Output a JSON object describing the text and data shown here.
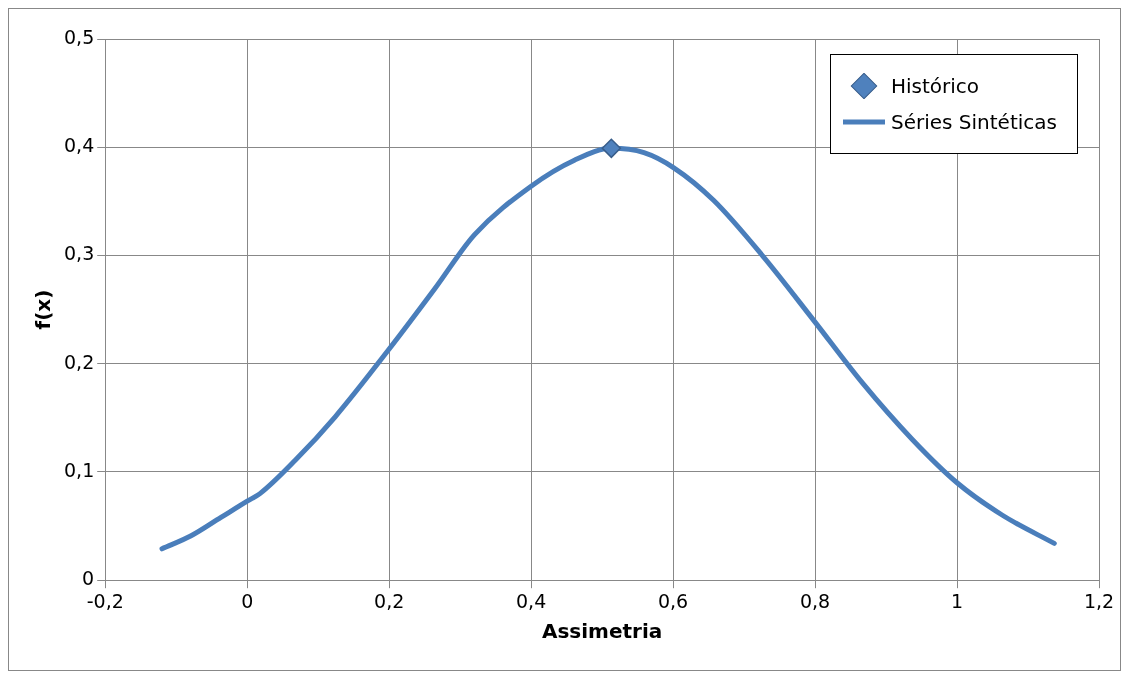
{
  "chart_data": {
    "type": "line",
    "xlabel": "Assimetria",
    "ylabel": "f(x)",
    "xlim": [
      -0.2,
      1.2
    ],
    "xticks": [
      {
        "value": -0.2,
        "label": "-0,2"
      },
      {
        "value": 0,
        "label": "0"
      },
      {
        "value": 0.2,
        "label": "0,2"
      },
      {
        "value": 0.4,
        "label": "0,4"
      },
      {
        "value": 0.6,
        "label": "0,6"
      },
      {
        "value": 0.8,
        "label": "0,8"
      },
      {
        "value": 1,
        "label": "1"
      },
      {
        "value": 1.2,
        "label": "1,2"
      }
    ],
    "ylim": [
      0,
      0.5
    ],
    "yticks": [
      {
        "value": 0,
        "label": "0"
      },
      {
        "value": 0.1,
        "label": "0,1"
      },
      {
        "value": 0.2,
        "label": "0,2"
      },
      {
        "value": 0.3,
        "label": "0,3"
      },
      {
        "value": 0.4,
        "label": "0,4"
      },
      {
        "value": 0.5,
        "label": "0,5"
      }
    ],
    "grid": true,
    "legend": "top right",
    "series": [
      {
        "name": "Histórico",
        "type": "scatter",
        "marker": "diamond",
        "color": "#4f81bd",
        "x": [
          0.513
        ],
        "values": [
          0.399
        ]
      },
      {
        "name": "Séries Sintéticas",
        "type": "line",
        "marker": "none",
        "color": "#4a7ebb",
        "x": [
          -0.12,
          -0.079,
          -0.037,
          0,
          0.018,
          0.068,
          0.124,
          0.197,
          0.264,
          0.32,
          0.4,
          0.461,
          0.513,
          0.559,
          0.601,
          0.657,
          0.727,
          0.797,
          0.867,
          0.937,
          1.0,
          1.064,
          1.137
        ],
        "values": [
          0.029,
          0.041,
          0.058,
          0.073,
          0.08,
          0.111,
          0.151,
          0.211,
          0.269,
          0.319,
          0.364,
          0.388,
          0.399,
          0.395,
          0.381,
          0.351,
          0.299,
          0.241,
          0.182,
          0.13,
          0.09,
          0.06,
          0.034
        ]
      }
    ]
  }
}
